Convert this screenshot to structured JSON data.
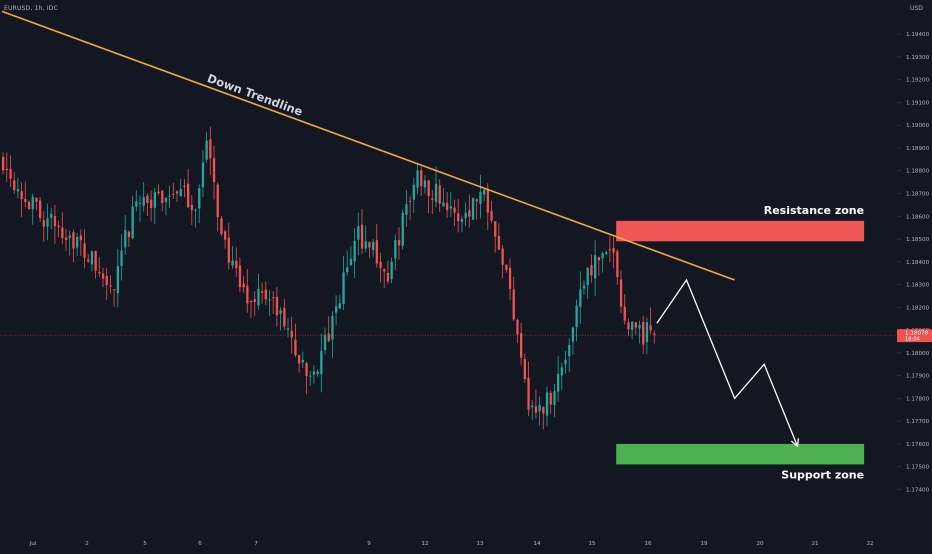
{
  "symbol": "EURUSD, 1h, IDC",
  "currency": "USD",
  "colors": {
    "background": "#131722",
    "up": "#26a69a",
    "down": "#ef5350",
    "trendline": "#f2a93b",
    "resistance": "#f05656",
    "support": "#4caf50",
    "projection": "#ffffff",
    "axis_text": "#b2b5be"
  },
  "current_price": {
    "value": "1.18078",
    "countdown": "18:04"
  },
  "chart_data": {
    "type": "candlestick",
    "title": "",
    "xlabel": "",
    "ylabel": "",
    "ylim": [
      1.172,
      1.1955
    ],
    "y_ticks": [
      "1.19400",
      "1.19300",
      "1.19200",
      "1.19100",
      "1.19000",
      "1.18900",
      "1.18800",
      "1.18700",
      "1.18600",
      "1.18500",
      "1.18400",
      "1.18300",
      "1.18200",
      "1.18100",
      "1.18000",
      "1.17900",
      "1.17800",
      "1.17700",
      "1.17600",
      "1.17500",
      "1.17400"
    ],
    "x_ticks": [
      "Jul",
      "2",
      "5",
      "6",
      "7",
      "9",
      "12",
      "13",
      "14",
      "15",
      "16",
      "19",
      "20",
      "21",
      "22"
    ],
    "anchors": [
      [
        0,
        1.1885
      ],
      [
        6,
        1.1868
      ],
      [
        12,
        1.1858
      ],
      [
        18,
        1.1852
      ],
      [
        24,
        1.184
      ],
      [
        27,
        1.1832
      ],
      [
        30,
        1.1826
      ],
      [
        33,
        1.1849
      ],
      [
        37,
        1.187
      ],
      [
        40,
        1.1865
      ],
      [
        46,
        1.1872
      ],
      [
        52,
        1.1865
      ],
      [
        55,
        1.1892
      ],
      [
        58,
        1.1862
      ],
      [
        62,
        1.1836
      ],
      [
        66,
        1.1822
      ],
      [
        70,
        1.1828
      ],
      [
        74,
        1.1818
      ],
      [
        78,
        1.1806
      ],
      [
        82,
        1.1788
      ],
      [
        85,
        1.1795
      ],
      [
        89,
        1.1812
      ],
      [
        93,
        1.1838
      ],
      [
        96,
        1.1852
      ],
      [
        100,
        1.1846
      ],
      [
        104,
        1.1832
      ],
      [
        108,
        1.1858
      ],
      [
        112,
        1.1878
      ],
      [
        116,
        1.1872
      ],
      [
        119,
        1.1868
      ],
      [
        122,
        1.1858
      ],
      [
        126,
        1.1864
      ],
      [
        130,
        1.1872
      ],
      [
        134,
        1.185
      ],
      [
        137,
        1.1826
      ],
      [
        140,
        1.1802
      ],
      [
        142,
        1.1778
      ],
      [
        145,
        1.1774
      ],
      [
        148,
        1.1782
      ],
      [
        152,
        1.1797
      ],
      [
        156,
        1.183
      ],
      [
        160,
        1.184
      ],
      [
        163,
        1.184
      ],
      [
        165,
        1.1848
      ],
      [
        167,
        1.1819
      ],
      [
        170,
        1.1813
      ],
      [
        173,
        1.1808
      ],
      [
        176,
        1.181
      ]
    ],
    "trendline": {
      "label": "Down Trendline",
      "start": [
        0,
        1.195
      ],
      "end": [
        198,
        1.1832
      ]
    },
    "zones": [
      {
        "label": "Resistance zone",
        "from": [
          166,
          1.1849
        ],
        "to": [
          233,
          1.1858
        ]
      },
      {
        "label": "Support zone",
        "from": [
          166,
          1.1751
        ],
        "to": [
          233,
          1.176
        ]
      }
    ],
    "projection": [
      [
        177,
        1.1813
      ],
      [
        185,
        1.1832
      ],
      [
        198,
        1.178
      ],
      [
        206,
        1.1795
      ],
      [
        215,
        1.1759
      ]
    ]
  }
}
